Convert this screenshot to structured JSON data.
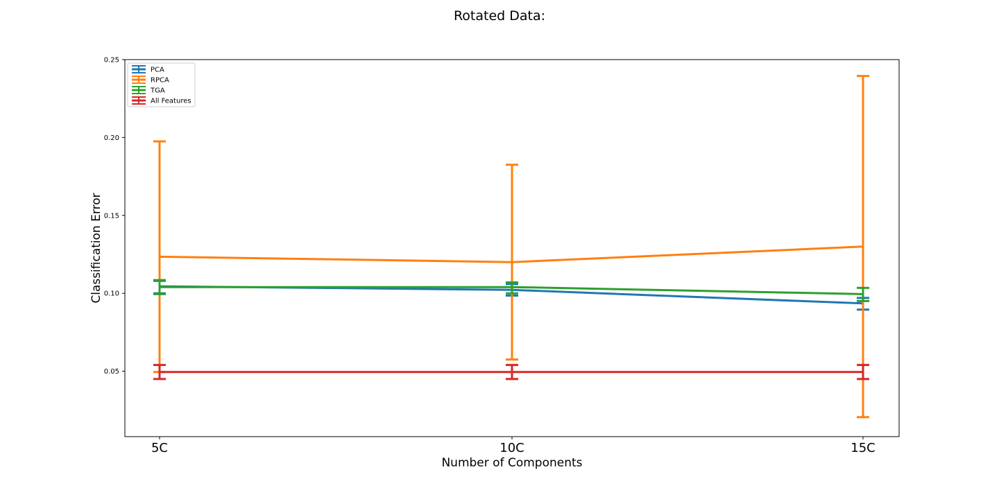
{
  "chart_data": {
    "type": "line",
    "title": "Rotated Data:",
    "xlabel": "Number of Components",
    "ylabel": "Classification Error",
    "categories": [
      "5C",
      "10C",
      "15C"
    ],
    "ylim": [
      0.008,
      0.25
    ],
    "yticks": [
      0.05,
      0.1,
      0.15,
      0.2,
      0.25
    ],
    "ytick_labels": [
      "0.05",
      "0.10",
      "0.15",
      "0.20",
      "0.25"
    ],
    "grid": false,
    "legend_position": "top-left",
    "series": [
      {
        "name": "PCA",
        "color": "#1f77b4",
        "values": [
          0.1045,
          0.1022,
          0.0935
        ],
        "err_low": [
          0.1,
          0.0985,
          0.0895
        ],
        "err_high": [
          0.108,
          0.106,
          0.097
        ]
      },
      {
        "name": "RPCA",
        "color": "#ff7f0e",
        "values": [
          0.1235,
          0.12,
          0.13
        ],
        "err_low": [
          0.0495,
          0.0575,
          0.0205
        ],
        "err_high": [
          0.1975,
          0.1825,
          0.2395
        ]
      },
      {
        "name": "TGA",
        "color": "#2ca02c",
        "values": [
          0.104,
          0.104,
          0.0995
        ],
        "err_low": [
          0.0995,
          0.1,
          0.095
        ],
        "err_high": [
          0.1085,
          0.107,
          0.1035
        ]
      },
      {
        "name": "All Features",
        "color": "#d62728",
        "values": [
          0.0495,
          0.0495,
          0.0495
        ],
        "err_low": [
          0.045,
          0.045,
          0.045
        ],
        "err_high": [
          0.054,
          0.054,
          0.054
        ]
      }
    ]
  }
}
